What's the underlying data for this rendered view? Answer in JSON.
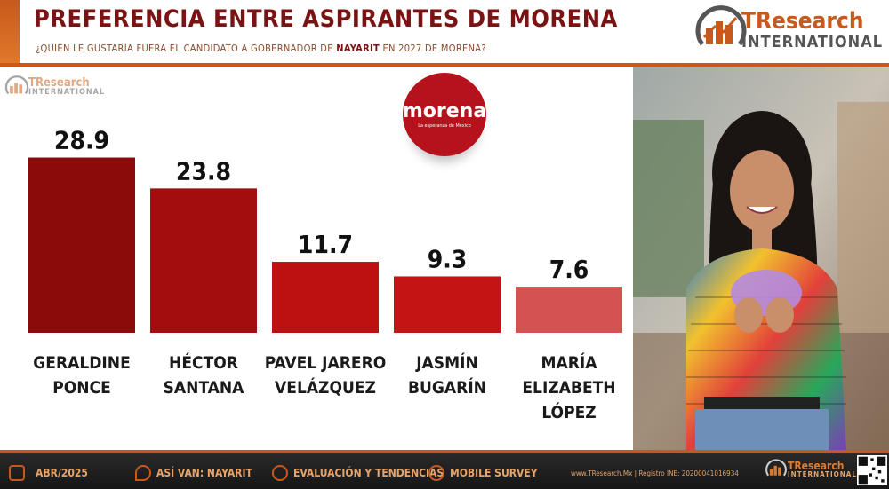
{
  "header": {
    "title": "PREFERENCIA ENTRE ASPIRANTES DE MORENA",
    "subtitle_pre": "¿QUIÉN LE GUSTARÍA FUERA EL CANDIDATO A GOBERNADOR DE ",
    "subtitle_bold": "NAYARIT",
    "subtitle_post": " EN 2027 DE MORENA?"
  },
  "brand": {
    "name_a": "TResearch",
    "name_b": "INTERNATIONAL"
  },
  "party_logo": {
    "name": "morena",
    "tagline": "La esperanza de México"
  },
  "chart_data": {
    "type": "bar",
    "categories": [
      "GERALDINE PONCE",
      "HÉCTOR SANTANA",
      "PAVEL JARERO VELÁZQUEZ",
      "JASMÍN BUGARÍN",
      "MARÍA ELIZABETH LÓPEZ"
    ],
    "category_lines": [
      [
        "GERALDINE",
        "PONCE"
      ],
      [
        "HÉCTOR",
        "SANTANA"
      ],
      [
        "PAVEL JARERO",
        "VELÁZQUEZ"
      ],
      [
        "JASMÍN",
        "BUGARÍN"
      ],
      [
        "MARÍA",
        "ELIZABETH",
        "LÓPEZ"
      ]
    ],
    "values": [
      28.9,
      23.8,
      11.7,
      9.3,
      7.6
    ],
    "value_labels": [
      "28.9",
      "23.8",
      "11.7",
      "9.3",
      "7.6"
    ],
    "colors": [
      "#8b0a0a",
      "#a30d0d",
      "#bb1111",
      "#c41414",
      "#d45252"
    ],
    "ylim": [
      0,
      30
    ],
    "grid": false,
    "legend": "none"
  },
  "footer": {
    "date": "ABR/2025",
    "item2": "ASÍ VAN: NAYARIT",
    "item3": "EVALUACIÓN Y TENDENCIAS",
    "item4": "MOBILE SURVEY",
    "web": "www.TResearch.Mx | Registro INE: 20200041016934"
  }
}
